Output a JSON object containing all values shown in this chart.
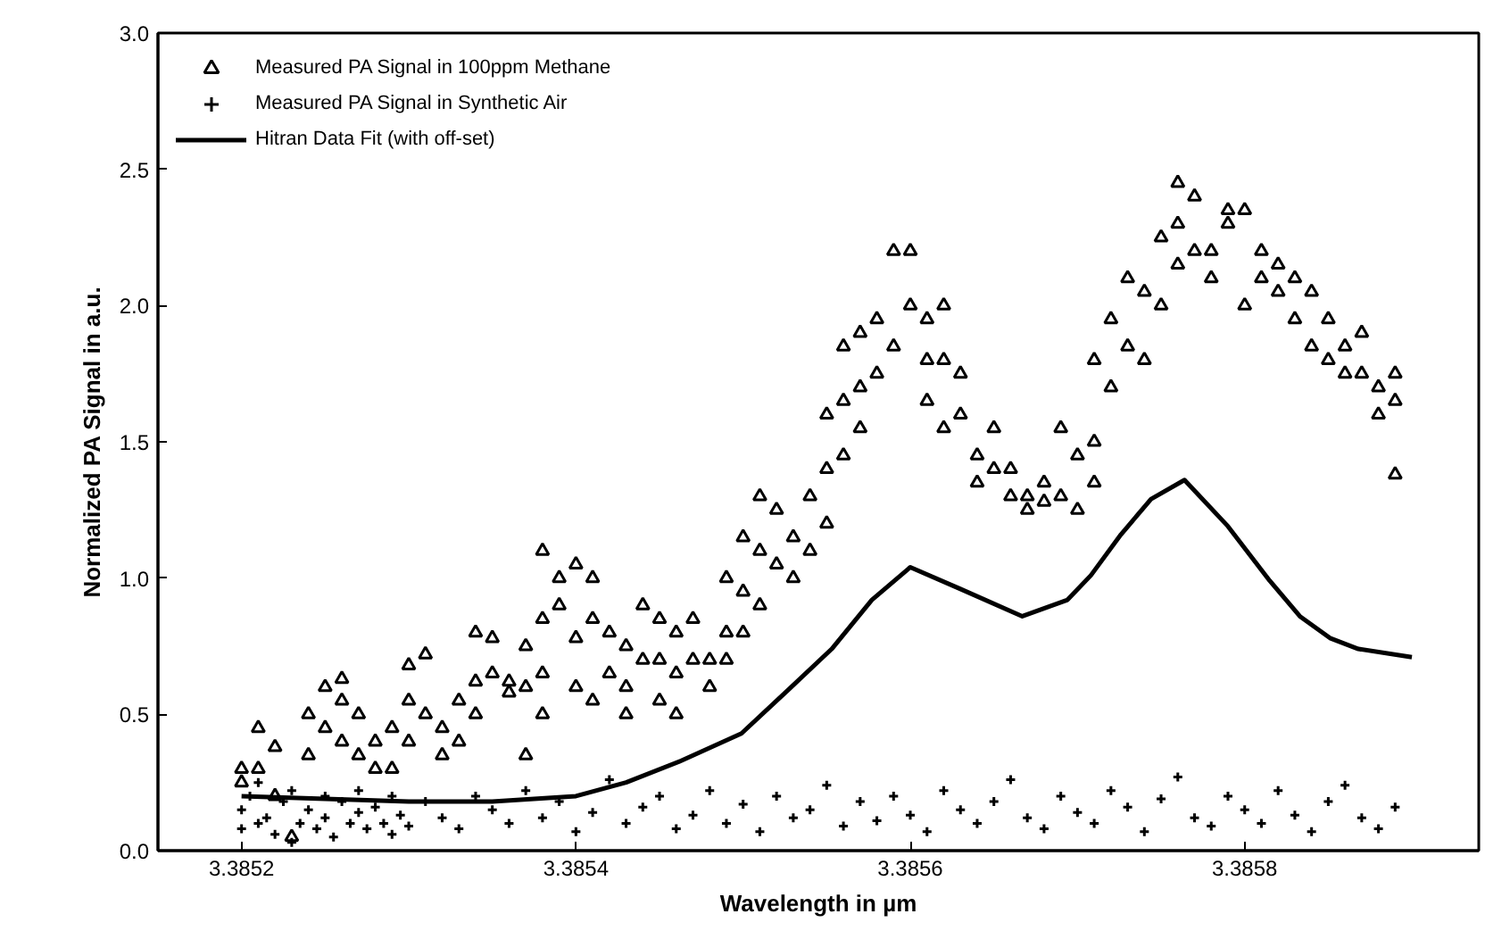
{
  "chart_data": {
    "type": "scatter",
    "xlabel": "Wavelength in µm",
    "ylabel": "Normalized PA Signal in a.u.",
    "xlim": [
      3.38515,
      3.38594
    ],
    "ylim": [
      0,
      3.0
    ],
    "xticks": [
      3.3852,
      3.3854,
      3.3856,
      3.3858
    ],
    "yticks": [
      {
        "value": 0,
        "label": "0.0"
      },
      0.5,
      {
        "value": 1,
        "label": "1.0"
      },
      1.5,
      {
        "value": 2,
        "label": "2.0"
      },
      2.5,
      {
        "value": 3,
        "label": "3.0"
      }
    ],
    "grid": false,
    "legend": "top left",
    "series": [
      {
        "name": "Measured PA Signal in 100ppm Methane",
        "marker": "triangle",
        "color": "#000000",
        "x": [
          3.3852,
          3.3852,
          3.38521,
          3.38521,
          3.38522,
          3.38522,
          3.38523,
          3.38524,
          3.38524,
          3.38525,
          3.38525,
          3.38526,
          3.38526,
          3.38526,
          3.38527,
          3.38527,
          3.38528,
          3.38528,
          3.38529,
          3.38529,
          3.3853,
          3.3853,
          3.3853,
          3.38531,
          3.38531,
          3.38532,
          3.38532,
          3.38533,
          3.38533,
          3.38534,
          3.38534,
          3.38534,
          3.38535,
          3.38535,
          3.38536,
          3.38536,
          3.38537,
          3.38537,
          3.38537,
          3.38538,
          3.38538,
          3.38538,
          3.38538,
          3.38539,
          3.38539,
          3.3854,
          3.3854,
          3.3854,
          3.38541,
          3.38541,
          3.38541,
          3.38542,
          3.38542,
          3.38543,
          3.38543,
          3.38543,
          3.38544,
          3.38544,
          3.38545,
          3.38545,
          3.38545,
          3.38546,
          3.38546,
          3.38546,
          3.38547,
          3.38547,
          3.38548,
          3.38548,
          3.38549,
          3.38549,
          3.38549,
          3.3855,
          3.3855,
          3.3855,
          3.38551,
          3.38551,
          3.38551,
          3.38552,
          3.38552,
          3.38553,
          3.38553,
          3.38554,
          3.38554,
          3.38555,
          3.38555,
          3.38555,
          3.38556,
          3.38556,
          3.38556,
          3.38557,
          3.38557,
          3.38557,
          3.38558,
          3.38558,
          3.38559,
          3.38559,
          3.3856,
          3.3856,
          3.38561,
          3.38561,
          3.38561,
          3.38562,
          3.38562,
          3.38562,
          3.38563,
          3.38563,
          3.38564,
          3.38564,
          3.38565,
          3.38565,
          3.38566,
          3.38566,
          3.38567,
          3.38567,
          3.38568,
          3.38568,
          3.38569,
          3.38569,
          3.3857,
          3.3857,
          3.38571,
          3.38571,
          3.38571,
          3.38572,
          3.38572,
          3.38573,
          3.38573,
          3.38574,
          3.38574,
          3.38575,
          3.38575,
          3.38576,
          3.38576,
          3.38576,
          3.38577,
          3.38577,
          3.38578,
          3.38578,
          3.38579,
          3.38579,
          3.3858,
          3.3858,
          3.38581,
          3.38581,
          3.38582,
          3.38582,
          3.38583,
          3.38583,
          3.38584,
          3.38584,
          3.38585,
          3.38585,
          3.38586,
          3.38586,
          3.38587,
          3.38587,
          3.38588,
          3.38588,
          3.38589,
          3.38589,
          3.38589
        ],
        "values": [
          0.3,
          0.25,
          0.45,
          0.3,
          0.38,
          0.2,
          0.05,
          0.35,
          0.5,
          0.6,
          0.45,
          0.63,
          0.55,
          0.4,
          0.5,
          0.35,
          0.3,
          0.4,
          0.45,
          0.3,
          0.68,
          0.55,
          0.4,
          0.72,
          0.5,
          0.45,
          0.35,
          0.4,
          0.55,
          0.8,
          0.62,
          0.5,
          0.78,
          0.65,
          0.62,
          0.58,
          0.75,
          0.6,
          0.35,
          1.1,
          0.85,
          0.65,
          0.5,
          1.0,
          0.9,
          1.05,
          0.78,
          0.6,
          1.0,
          0.85,
          0.55,
          0.8,
          0.65,
          0.75,
          0.6,
          0.5,
          0.9,
          0.7,
          0.85,
          0.7,
          0.55,
          0.8,
          0.65,
          0.5,
          0.85,
          0.7,
          0.7,
          0.6,
          1.0,
          0.8,
          0.7,
          1.15,
          0.95,
          0.8,
          1.3,
          1.1,
          0.9,
          1.25,
          1.05,
          1.15,
          1.0,
          1.3,
          1.1,
          1.6,
          1.4,
          1.2,
          1.85,
          1.65,
          1.45,
          1.9,
          1.7,
          1.55,
          1.95,
          1.75,
          2.2,
          1.85,
          2.2,
          2.0,
          1.95,
          1.8,
          1.65,
          2.0,
          1.8,
          1.55,
          1.75,
          1.6,
          1.45,
          1.35,
          1.55,
          1.4,
          1.4,
          1.3,
          1.3,
          1.25,
          1.35,
          1.28,
          1.55,
          1.3,
          1.45,
          1.25,
          1.8,
          1.5,
          1.35,
          1.95,
          1.7,
          2.1,
          1.85,
          2.05,
          1.8,
          2.25,
          2.0,
          2.45,
          2.3,
          2.15,
          2.4,
          2.2,
          2.2,
          2.1,
          2.35,
          2.3,
          2.35,
          2.0,
          2.2,
          2.1,
          2.15,
          2.05,
          2.1,
          1.95,
          2.05,
          1.85,
          1.95,
          1.8,
          1.85,
          1.75,
          1.9,
          1.75,
          1.7,
          1.6,
          1.75,
          1.65,
          1.38
        ]
      },
      {
        "name": "Measured PA Signal in Synthetic Air",
        "marker": "cross",
        "color": "#000000",
        "x": [
          3.3852,
          3.3852,
          3.385205,
          3.38521,
          3.38521,
          3.385215,
          3.38522,
          3.385225,
          3.38523,
          3.38523,
          3.385235,
          3.38524,
          3.385245,
          3.38525,
          3.38525,
          3.385255,
          3.38526,
          3.385265,
          3.38527,
          3.38527,
          3.385275,
          3.38528,
          3.385285,
          3.38529,
          3.38529,
          3.385295,
          3.3853,
          3.38531,
          3.38532,
          3.38533,
          3.38534,
          3.38535,
          3.38536,
          3.38537,
          3.38538,
          3.38539,
          3.3854,
          3.38541,
          3.38542,
          3.38543,
          3.38544,
          3.38545,
          3.38546,
          3.38547,
          3.38548,
          3.38549,
          3.3855,
          3.38551,
          3.38552,
          3.38553,
          3.38554,
          3.38555,
          3.38556,
          3.38557,
          3.38558,
          3.38559,
          3.3856,
          3.38561,
          3.38562,
          3.38563,
          3.38564,
          3.38565,
          3.38566,
          3.38567,
          3.38568,
          3.38569,
          3.3857,
          3.38571,
          3.38572,
          3.38573,
          3.38574,
          3.38575,
          3.38576,
          3.38577,
          3.38578,
          3.38579,
          3.3858,
          3.38581,
          3.38582,
          3.38583,
          3.38584,
          3.38585,
          3.38586,
          3.38587,
          3.38588,
          3.38589
        ],
        "values": [
          0.15,
          0.08,
          0.2,
          0.1,
          0.25,
          0.12,
          0.06,
          0.18,
          0.03,
          0.22,
          0.1,
          0.15,
          0.08,
          0.2,
          0.12,
          0.05,
          0.18,
          0.1,
          0.14,
          0.22,
          0.08,
          0.16,
          0.1,
          0.2,
          0.06,
          0.13,
          0.09,
          0.18,
          0.12,
          0.08,
          0.2,
          0.15,
          0.1,
          0.22,
          0.12,
          0.18,
          0.07,
          0.14,
          0.26,
          0.1,
          0.16,
          0.2,
          0.08,
          0.13,
          0.22,
          0.1,
          0.17,
          0.07,
          0.2,
          0.12,
          0.15,
          0.24,
          0.09,
          0.18,
          0.11,
          0.2,
          0.13,
          0.07,
          0.22,
          0.15,
          0.1,
          0.18,
          0.26,
          0.12,
          0.08,
          0.2,
          0.14,
          0.1,
          0.22,
          0.16,
          0.07,
          0.19,
          0.27,
          0.12,
          0.09,
          0.2,
          0.15,
          0.1,
          0.22,
          0.13,
          0.07,
          0.18,
          0.24,
          0.12,
          0.08,
          0.16
        ]
      },
      {
        "name": "Hitran Data Fit (with off-set)",
        "type": "line",
        "marker": "none",
        "line_style": "solid",
        "color": "#000000",
        "x": [
          3.3852,
          3.38525,
          3.3853,
          3.38535,
          3.3854,
          3.38543,
          3.385463,
          3.385499,
          3.385527,
          3.385553,
          3.385577,
          3.3856,
          3.38563,
          3.385667,
          3.385694,
          3.385708,
          3.385726,
          3.385744,
          3.385764,
          3.38579,
          3.385815,
          3.385833,
          3.385851,
          3.385868,
          3.3859
        ],
        "values": [
          0.2,
          0.19,
          0.18,
          0.18,
          0.2,
          0.25,
          0.33,
          0.43,
          0.59,
          0.74,
          0.92,
          1.04,
          0.96,
          0.86,
          0.92,
          1.01,
          1.16,
          1.29,
          1.36,
          1.19,
          0.99,
          0.86,
          0.78,
          0.74,
          0.71
        ]
      }
    ]
  }
}
